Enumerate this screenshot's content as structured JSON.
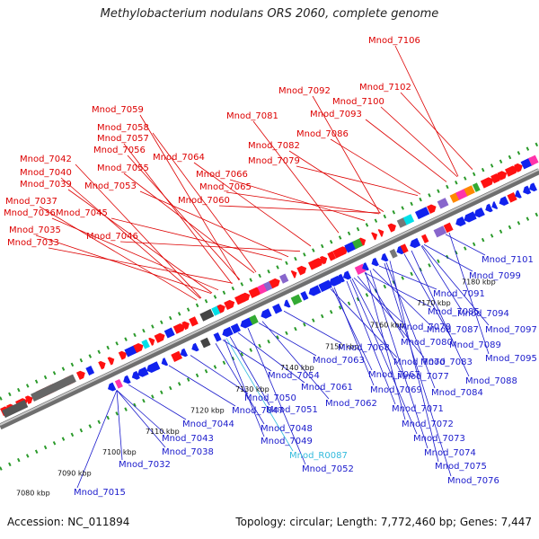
{
  "title": "Methylobacterium nodulans ORS 2060, complete genome",
  "accession": "Accession: NC_011894",
  "stats": "Topology: circular; Length: 7,772,460 bp; Genes: 7,447",
  "colors": {
    "forward_label": "#dd0000",
    "reverse_label": "#1a1acc",
    "rna_label": "#33bbdd",
    "backbone": "#8a8a8a"
  },
  "ticks": [
    "7080 kbp",
    "7090 kbp",
    "7100 kbp",
    "7110 kbp",
    "7120 kbp",
    "7130 kbp",
    "7140 kbp",
    "7150 kbp",
    "7160 kbp",
    "7170 kbp",
    "7180 kbp"
  ],
  "forward_genes": [
    "Mnod_7106",
    "Mnod_7092",
    "Mnod_7102",
    "Mnod_7100",
    "Mnod_7093",
    "Mnod_7081",
    "Mnod_7086",
    "Mnod_7082",
    "Mnod_7059",
    "Mnod_7058",
    "Mnod_7057",
    "Mnod_7056",
    "Mnod_7064",
    "Mnod_7079",
    "Mnod_7042",
    "Mnod_7055",
    "Mnod_7066",
    "Mnod_7040",
    "Mnod_7039",
    "Mnod_7053",
    "Mnod_7065",
    "Mnod_7037",
    "Mnod_7060",
    "Mnod_7036",
    "Mnod_7045",
    "Mnod_7035",
    "Mnod_7046",
    "Mnod_7033"
  ],
  "reverse_genes": [
    "Mnod_7101",
    "Mnod_7099",
    "Mnod_7091",
    "Mnod_7085",
    "Mnod_7094",
    "Mnod_7078",
    "Mnod_7087",
    "Mnod_7097",
    "Mnod_7080",
    "Mnod_7089",
    "Mnod_7068",
    "Mnod_7083",
    "Mnod_7095",
    "Mnod_7054",
    "Mnod_7063",
    "Mnod_7070",
    "Mnod_7067",
    "Mnod_7077",
    "Mnod_7088",
    "Mnod_7061",
    "Mnod_7069",
    "Mnod_7084",
    "Mnod_7050",
    "Mnod_7062",
    "Mnod_7051",
    "Mnod_7071",
    "Mnod_7044",
    "Mnod_7047",
    "Mnod_7072",
    "Mnod_7048",
    "Mnod_7043",
    "Mnod_7073",
    "Mnod_7049",
    "Mnod_7038",
    "Mnod_7074",
    "Mnod_R0087",
    "Mnod_7032",
    "Mnod_7075",
    "Mnod_7052",
    "Mnod_7076",
    "Mnod_7015"
  ]
}
